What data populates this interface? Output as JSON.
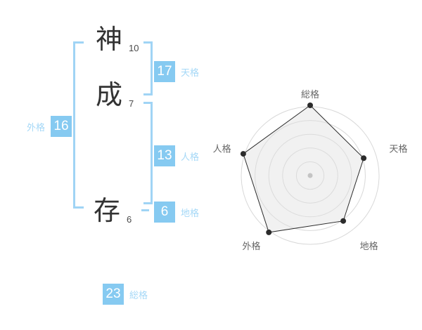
{
  "name_panel": {
    "characters": [
      {
        "char": "神",
        "strokes": "10"
      },
      {
        "char": "成",
        "strokes": "7"
      },
      {
        "char": "存",
        "strokes": "6"
      }
    ],
    "badges": [
      {
        "id": "tenkaku",
        "value": "17",
        "label": "天格"
      },
      {
        "id": "jinkaku",
        "value": "13",
        "label": "人格"
      },
      {
        "id": "chikaku",
        "value": "6",
        "label": "地格"
      },
      {
        "id": "gaikaku",
        "value": "16",
        "label": "外格"
      },
      {
        "id": "soukaku",
        "value": "23",
        "label": "総格"
      }
    ]
  },
  "colors": {
    "badge_bg": "#86CAF1",
    "accent_text": "#A5D8F7",
    "bracket": "#A0D4F5",
    "kanji": "#333333",
    "stroke_count": "#4A4A4A",
    "chart_grid": "#D8D8D8",
    "chart_line": "#2B2B2B",
    "chart_label": "#666666",
    "chart_fill": "#DFDFDF",
    "chart_center_dot": "#C4C4C4"
  },
  "chart_data": {
    "type": "radar",
    "categories": [
      "総格",
      "天格",
      "地格",
      "外格",
      "人格"
    ],
    "values": [
      100,
      80,
      80,
      100,
      100
    ],
    "max": 100,
    "rings": 5,
    "grid": "concentric-circles",
    "legend": "none",
    "title": ""
  }
}
